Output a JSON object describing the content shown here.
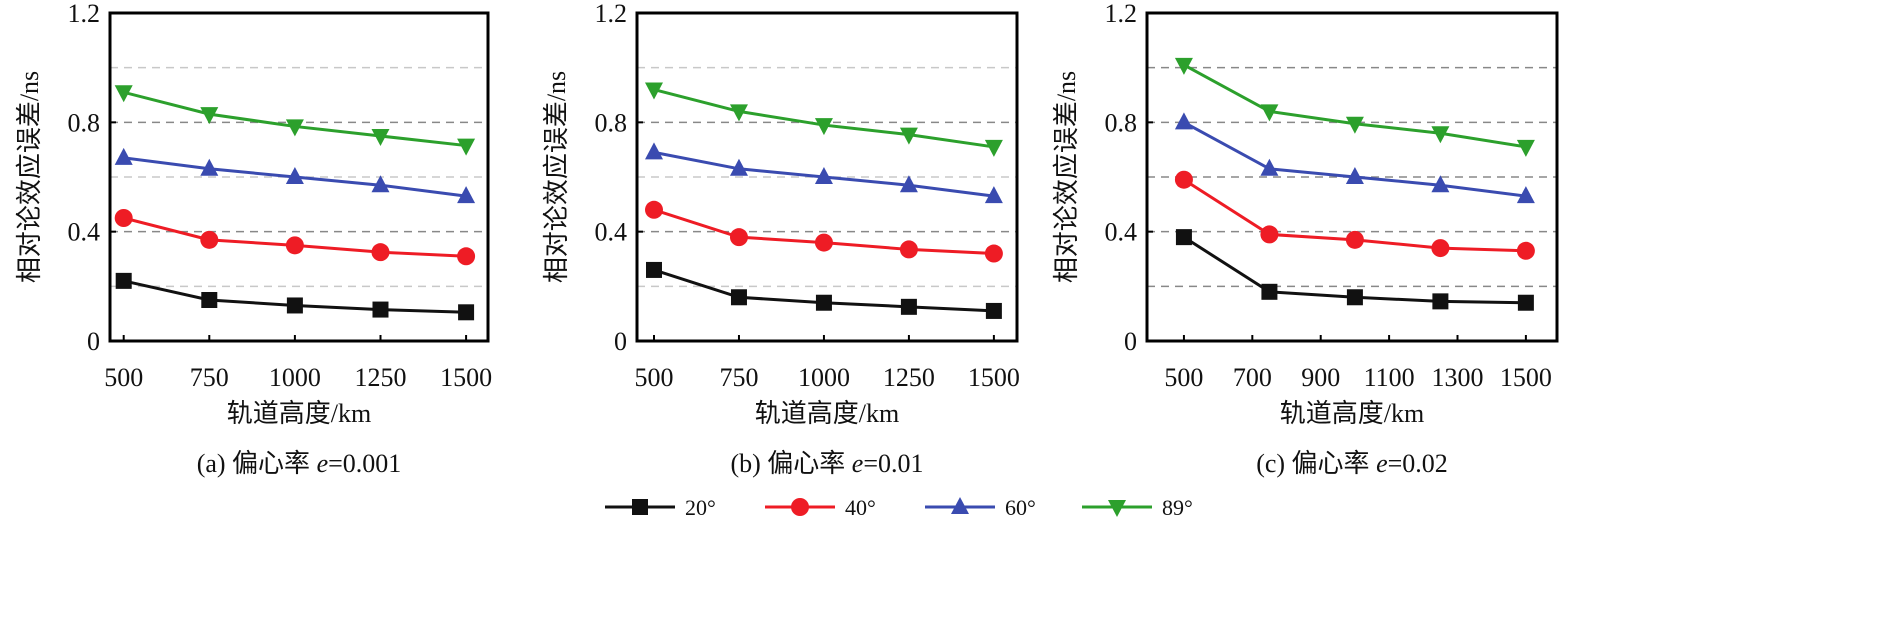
{
  "chart_data": [
    {
      "type": "line",
      "caption": "(a) 偏心率 e=0.001",
      "caption_prefix": "(a) 偏心率 ",
      "caption_var": "e",
      "caption_value": "=0.001",
      "xlabel": "轨道高度/km",
      "ylabel": "相对论效应误差/ns",
      "xlim": [
        460,
        1564
      ],
      "ylim": [
        0,
        1.2
      ],
      "xticks": [
        500,
        750,
        1000,
        1250,
        1500
      ],
      "yticks": [
        0,
        0.4,
        0.8,
        1.2
      ],
      "ytick_labels": [
        "0",
        "0.4",
        "0.8",
        "1.2"
      ],
      "grid_y": [
        0.2,
        0.4,
        0.6,
        0.8,
        1.0
      ],
      "x": [
        500,
        750,
        1000,
        1250,
        1500
      ],
      "series": [
        {
          "name": "20°",
          "values": [
            0.22,
            0.15,
            0.13,
            0.115,
            0.105
          ]
        },
        {
          "name": "40°",
          "values": [
            0.45,
            0.37,
            0.35,
            0.325,
            0.31
          ]
        },
        {
          "name": "60°",
          "values": [
            0.67,
            0.63,
            0.6,
            0.57,
            0.53
          ]
        },
        {
          "name": "89°",
          "values": [
            0.91,
            0.83,
            0.785,
            0.75,
            0.715
          ]
        }
      ]
    },
    {
      "type": "line",
      "caption": "(b) 偏心率 e=0.01",
      "caption_prefix": "(b) 偏心率 ",
      "caption_var": "e",
      "caption_value": "=0.01",
      "xlabel": "轨道高度/km",
      "ylabel": "相对论效应误差/ns",
      "xlim": [
        450,
        1568
      ],
      "ylim": [
        0,
        1.2
      ],
      "xticks": [
        500,
        750,
        1000,
        1250,
        1500
      ],
      "yticks": [
        0,
        0.4,
        0.8,
        1.2
      ],
      "ytick_labels": [
        "0",
        "0.4",
        "0.8",
        "1.2"
      ],
      "grid_y": [
        0.2,
        0.4,
        0.6,
        0.8,
        1.0
      ],
      "x": [
        500,
        750,
        1000,
        1250,
        1500
      ],
      "series": [
        {
          "name": "20°",
          "values": [
            0.26,
            0.16,
            0.14,
            0.125,
            0.11
          ]
        },
        {
          "name": "40°",
          "values": [
            0.48,
            0.38,
            0.36,
            0.335,
            0.32
          ]
        },
        {
          "name": "60°",
          "values": [
            0.69,
            0.63,
            0.6,
            0.57,
            0.53
          ]
        },
        {
          "name": "89°",
          "values": [
            0.92,
            0.84,
            0.79,
            0.755,
            0.71
          ]
        }
      ]
    },
    {
      "type": "line",
      "caption": "(c) 偏心率 e=0.02",
      "caption_prefix": "(c) 偏心率 ",
      "caption_var": "e",
      "caption_value": "=0.02",
      "xlabel": "轨道高度/km",
      "ylabel": "相对论效应误差/ns",
      "xlim": [
        392,
        1591
      ],
      "ylim": [
        0,
        1.2
      ],
      "xticks": [
        500,
        700,
        900,
        1100,
        1300,
        1500
      ],
      "yticks": [
        0,
        0.4,
        0.8,
        1.2
      ],
      "ytick_labels": [
        "0",
        "0.4",
        "0.8",
        "1.2"
      ],
      "grid_y": [
        0.2,
        0.4,
        0.6,
        0.8,
        1.0
      ],
      "x": [
        500,
        750,
        1000,
        1250,
        1500
      ],
      "series": [
        {
          "name": "20°",
          "values": [
            0.38,
            0.18,
            0.16,
            0.145,
            0.14
          ]
        },
        {
          "name": "40°",
          "values": [
            0.59,
            0.39,
            0.37,
            0.34,
            0.33
          ]
        },
        {
          "name": "60°",
          "values": [
            0.8,
            0.63,
            0.6,
            0.57,
            0.53
          ]
        },
        {
          "name": "89°",
          "values": [
            1.01,
            0.84,
            0.795,
            0.76,
            0.71
          ]
        }
      ]
    }
  ],
  "legend": [
    {
      "label": "20°",
      "color": "#111111",
      "marker": "square"
    },
    {
      "label": "40°",
      "color": "#ee1c25",
      "marker": "circle"
    },
    {
      "label": "60°",
      "color": "#3a4bb0",
      "marker": "triangle-up"
    },
    {
      "label": "89°",
      "color": "#2ca02c",
      "marker": "triangle-down"
    }
  ]
}
